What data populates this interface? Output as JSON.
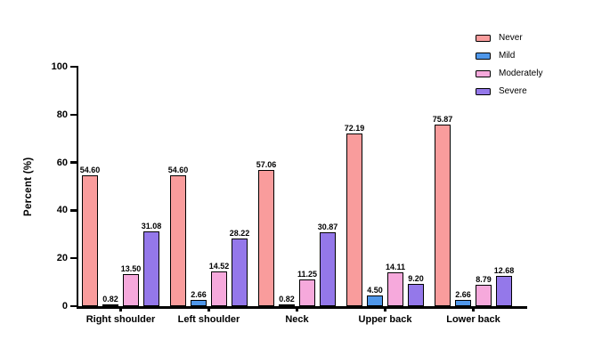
{
  "chart_data": {
    "type": "bar",
    "title": "",
    "xlabel": "",
    "ylabel": "Percent (%)",
    "ylim": [
      0,
      100
    ],
    "yticks": [
      0,
      20,
      40,
      60,
      80,
      100
    ],
    "grid": false,
    "legend_position": "top-right",
    "bar_border_color": "#000000",
    "axis_color": "#000000",
    "categories": [
      "Right shoulder",
      "Left shoulder",
      "Neck",
      "Upper back",
      "Lower back"
    ],
    "series": [
      {
        "name": "Never",
        "color": "#F99C9C",
        "values": [
          54.6,
          54.6,
          57.06,
          72.19,
          75.87
        ],
        "labels": [
          "54.60",
          "54.60",
          "57.06",
          "72.19",
          "75.87"
        ]
      },
      {
        "name": "Mild",
        "color": "#4F97EA",
        "values": [
          0.82,
          2.66,
          0.82,
          4.5,
          2.66
        ],
        "labels": [
          "0.82",
          "2.66",
          "0.82",
          "4.50",
          "2.66"
        ]
      },
      {
        "name": "Moderately",
        "color": "#F6A9DC",
        "values": [
          13.5,
          14.52,
          11.25,
          14.11,
          8.79
        ],
        "labels": [
          "13.50",
          "14.52",
          "11.25",
          "14.11",
          "8.79"
        ]
      },
      {
        "name": "Severe",
        "color": "#9478EA",
        "values": [
          31.08,
          28.22,
          30.87,
          9.2,
          12.68
        ],
        "labels": [
          "31.08",
          "28.22",
          "30.87",
          "9.20",
          "12.68"
        ]
      }
    ]
  }
}
